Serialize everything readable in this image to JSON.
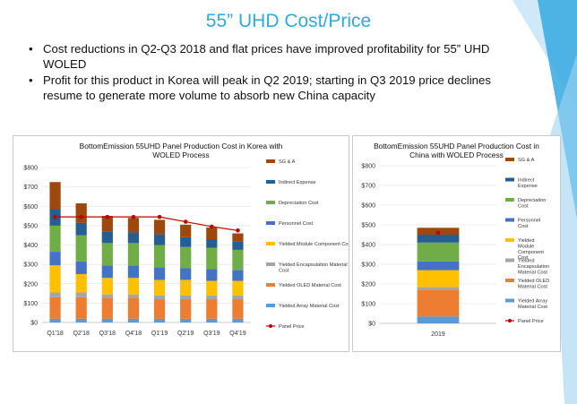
{
  "slide": {
    "title": "55” UHD Cost/Price",
    "bullets": [
      "Cost reductions in Q2-Q3 2018 and flat prices have improved profitability for 55” UHD WOLED",
      "Profit for this product in Korea will peak in Q2 2019; starting in Q3 2019 price declines resume to generate more volume to absorb new China capacity"
    ]
  },
  "colors": {
    "title": "#2eaadc",
    "decor_light": "#cfe9f8",
    "decor_dark": "#35a9e0"
  },
  "chart_data": [
    {
      "type": "bar",
      "stacked": true,
      "title": "BottomEmission 55UHD Panel Production Cost in Korea with WOLED Process",
      "ylim": [
        0,
        800
      ],
      "yticks": [
        "$0",
        "$100",
        "$200",
        "$300",
        "$400",
        "$500",
        "$600",
        "$700",
        "$800"
      ],
      "grid": true,
      "legend_position": "right",
      "categories": [
        "Q1'18",
        "Q2'18",
        "Q3'18",
        "Q4'18",
        "Q1'19",
        "Q2'19",
        "Q3'19",
        "Q4'19"
      ],
      "series": [
        {
          "name": "Yielded Array Material Cost",
          "color": "#5b9bd5",
          "values": [
            20,
            20,
            20,
            20,
            20,
            20,
            20,
            20
          ]
        },
        {
          "name": "Yielded OLED Material Cost",
          "color": "#ed7d31",
          "values": [
            110,
            110,
            105,
            105,
            100,
            100,
            100,
            100
          ]
        },
        {
          "name": "Yielded Encapsulation Material Cost",
          "color": "#a5a5a5",
          "values": [
            25,
            25,
            20,
            20,
            20,
            20,
            20,
            20
          ]
        },
        {
          "name": "Yielded Module Component Cost",
          "color": "#ffc000",
          "values": [
            140,
            95,
            85,
            85,
            80,
            80,
            75,
            75
          ]
        },
        {
          "name": "Personnel Cost",
          "color": "#4472c4",
          "values": [
            70,
            65,
            65,
            65,
            65,
            60,
            60,
            55
          ]
        },
        {
          "name": "Depreciation Cost",
          "color": "#70ad47",
          "values": [
            135,
            135,
            115,
            115,
            115,
            110,
            110,
            105
          ]
        },
        {
          "name": "Indirect Expense",
          "color": "#255e91",
          "values": [
            85,
            65,
            60,
            55,
            55,
            50,
            45,
            45
          ]
        },
        {
          "name": "SG & A",
          "color": "#9e480e",
          "values": [
            140,
            100,
            80,
            75,
            75,
            65,
            60,
            40
          ]
        }
      ],
      "line": {
        "name": "Panel Price",
        "color": "#c00000",
        "values": [
          545,
          545,
          545,
          545,
          545,
          520,
          495,
          475
        ]
      }
    },
    {
      "type": "bar",
      "stacked": true,
      "title": "BottomEmission 55UHD Panel Production Cost in China with WOLED Process",
      "ylim": [
        0,
        800
      ],
      "yticks": [
        "$0",
        "$100",
        "$200",
        "$300",
        "$400",
        "$500",
        "$600",
        "$700",
        "$800"
      ],
      "grid": true,
      "legend_position": "right",
      "categories": [
        "2019"
      ],
      "series": [
        {
          "name": "Yielded Array Material Cost",
          "color": "#5b9bd5",
          "values": [
            35
          ]
        },
        {
          "name": "Yielded OLED Material Cost",
          "color": "#ed7d31",
          "values": [
            135
          ]
        },
        {
          "name": "Yielded Encapsulation Material Cost",
          "color": "#a5a5a5",
          "values": [
            15
          ]
        },
        {
          "name": "Yielded Module Component Cost",
          "color": "#ffc000",
          "values": [
            85
          ]
        },
        {
          "name": "Personnel Cost",
          "color": "#4472c4",
          "values": [
            45
          ]
        },
        {
          "name": "Depreciation Cost",
          "color": "#70ad47",
          "values": [
            95
          ]
        },
        {
          "name": "Indirect Expense",
          "color": "#255e91",
          "values": [
            40
          ]
        },
        {
          "name": "SG & A",
          "color": "#9e480e",
          "values": [
            35
          ]
        }
      ],
      "line": {
        "name": "Panel Price",
        "color": "#c00000",
        "values": [
          460
        ]
      }
    }
  ]
}
